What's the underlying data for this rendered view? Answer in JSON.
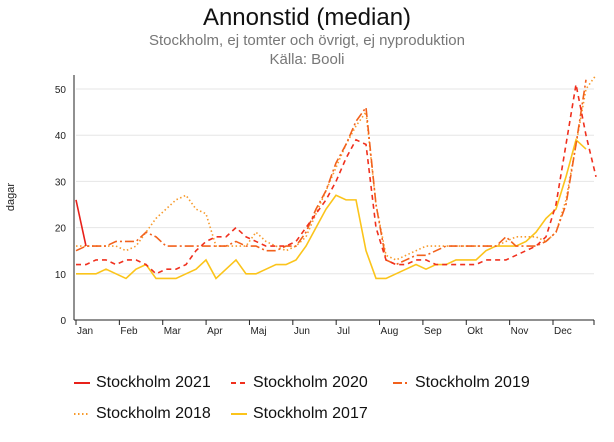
{
  "chart_data": {
    "type": "line",
    "title": "Annonstid (median)",
    "subtitle": "Stockholm, ej tomter och övrigt, ej nyproduktion",
    "source": "Källa: Booli",
    "ylabel": "dagar",
    "xlabel": "",
    "ylim": [
      0,
      55
    ],
    "yticks": [
      0,
      10,
      20,
      30,
      40,
      50
    ],
    "x_unit": "week",
    "month_labels": [
      "Jan",
      "Feb",
      "Mar",
      "Apr",
      "Maj",
      "Jun",
      "Jul",
      "Aug",
      "Sep",
      "Okt",
      "Nov",
      "Dec"
    ],
    "grid": true,
    "legend": "bottom",
    "series": [
      {
        "name": "Stockholm 2021",
        "color": "#e8211a",
        "dash": "",
        "values": [
          26,
          16
        ]
      },
      {
        "name": "Stockholm 2020",
        "color": "#f0301e",
        "dash": "5,4",
        "values": [
          12,
          12,
          13,
          13,
          12,
          13,
          13,
          12,
          10,
          11,
          11,
          12,
          15,
          17,
          18,
          18,
          20,
          18,
          17,
          16,
          16,
          16,
          17,
          20,
          23,
          26,
          30,
          35,
          39,
          38,
          20,
          13,
          12,
          12,
          13,
          13,
          12,
          12,
          12,
          12,
          12,
          13,
          13,
          13,
          14,
          15,
          16,
          18,
          25,
          38,
          51,
          40,
          31
        ]
      },
      {
        "name": "Stockholm 2019",
        "color": "#f2611c",
        "dash": "9,3,2,3",
        "values": [
          15,
          16,
          16,
          16,
          17,
          17,
          17,
          19,
          18,
          16,
          16,
          16,
          16,
          16,
          16,
          16,
          17,
          16,
          16,
          15,
          15,
          16,
          16,
          19,
          24,
          28,
          34,
          38,
          43,
          46,
          25,
          13,
          12,
          13,
          14,
          14,
          15,
          16,
          16,
          16,
          16,
          16,
          16,
          18,
          16,
          16,
          16,
          17,
          19,
          25,
          38,
          52
        ]
      },
      {
        "name": "Stockholm 2018",
        "color": "#f79a2b",
        "dash": "1.5,2.5",
        "values": [
          16,
          16,
          16,
          16,
          16,
          15,
          16,
          19,
          22,
          24,
          26,
          27,
          24,
          23,
          16,
          16,
          16,
          16,
          19,
          17,
          16,
          15,
          16,
          18,
          23,
          28,
          33,
          38,
          42,
          45,
          25,
          14,
          13,
          14,
          15,
          16,
          16,
          16,
          16,
          16,
          16,
          16,
          16,
          17,
          18,
          18,
          18,
          17,
          19,
          26,
          38,
          50,
          53
        ]
      },
      {
        "name": "Stockholm 2017",
        "color": "#fbc41b",
        "dash": "",
        "values": [
          10,
          10,
          10,
          11,
          10,
          9,
          11,
          12,
          9,
          9,
          9,
          10,
          11,
          13,
          9,
          11,
          13,
          10,
          10,
          11,
          12,
          12,
          13,
          16,
          20,
          24,
          27,
          26,
          26,
          15,
          9,
          9,
          10,
          11,
          12,
          11,
          12,
          12,
          13,
          13,
          13,
          15,
          16,
          16,
          16,
          17,
          19,
          22,
          24,
          31,
          39,
          37
        ]
      }
    ]
  }
}
